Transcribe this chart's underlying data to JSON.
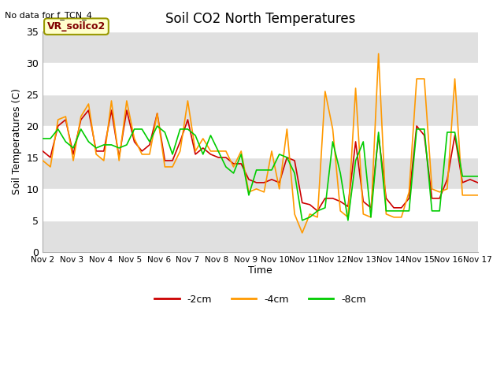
{
  "title": "Soil CO2 North Temperatures",
  "subtitle": "No data for f_TCN_4",
  "ylabel": "Soil Temperatures (C)",
  "xlabel": "Time",
  "ylim": [
    0,
    35
  ],
  "xlim": [
    0,
    15
  ],
  "xtick_labels": [
    "Nov 2",
    "Nov 3",
    "Nov 4",
    "Nov 5",
    "Nov 6",
    "Nov 7",
    "Nov 8",
    "Nov 9",
    "Nov 10",
    "Nov 11",
    "Nov 12",
    "Nov 13",
    "Nov 14",
    "Nov 15",
    "Nov 16",
    "Nov 17"
  ],
  "legend_label": "VR_soilco2",
  "legend_entries": [
    "-2cm",
    "-4cm",
    "-8cm"
  ],
  "legend_colors": [
    "#cc0000",
    "#ff9900",
    "#00cc00"
  ],
  "line_2cm_color": "#cc0000",
  "line_4cm_color": "#ff9900",
  "line_8cm_color": "#00cc00",
  "series_2cm": [
    16.0,
    15.0,
    20.0,
    21.0,
    15.5,
    21.0,
    22.5,
    16.0,
    16.0,
    22.5,
    15.0,
    22.5,
    17.5,
    16.0,
    17.0,
    22.0,
    14.5,
    14.5,
    17.5,
    21.0,
    15.5,
    16.5,
    15.5,
    15.0,
    15.0,
    14.0,
    14.0,
    11.5,
    11.0,
    11.0,
    11.5,
    11.0,
    15.0,
    14.5,
    7.8,
    7.5,
    6.5,
    8.5,
    8.5,
    8.0,
    7.2,
    17.5,
    8.0,
    7.0,
    18.5,
    8.5,
    7.0,
    7.0,
    8.5,
    20.0,
    18.5,
    8.5,
    8.5,
    11.5,
    18.5,
    11.0,
    11.5,
    11.0
  ],
  "series_4cm": [
    14.5,
    13.5,
    21.0,
    21.5,
    14.5,
    21.5,
    23.5,
    15.5,
    14.5,
    24.0,
    14.5,
    24.0,
    18.0,
    15.5,
    15.5,
    22.0,
    13.5,
    13.5,
    16.0,
    24.0,
    16.0,
    18.0,
    16.0,
    16.0,
    16.0,
    13.5,
    16.0,
    9.5,
    10.0,
    9.5,
    16.0,
    10.0,
    19.5,
    6.0,
    3.0,
    6.0,
    5.5,
    25.5,
    19.5,
    6.5,
    5.5,
    26.0,
    6.0,
    5.5,
    31.5,
    6.0,
    5.5,
    5.5,
    9.5,
    27.5,
    27.5,
    10.0,
    9.5,
    10.0,
    27.5,
    9.0,
    9.0,
    9.0
  ],
  "series_8cm": [
    18.0,
    18.0,
    19.5,
    17.5,
    16.5,
    19.5,
    17.5,
    16.5,
    17.0,
    17.0,
    16.5,
    17.0,
    19.5,
    19.5,
    17.5,
    20.0,
    19.0,
    15.5,
    19.5,
    19.5,
    18.5,
    15.5,
    18.5,
    16.0,
    13.5,
    12.5,
    15.5,
    9.0,
    13.0,
    13.0,
    13.0,
    15.5,
    15.0,
    12.5,
    5.0,
    5.5,
    6.5,
    7.0,
    17.5,
    12.5,
    5.0,
    14.5,
    17.5,
    5.5,
    19.0,
    6.5,
    6.5,
    6.5,
    6.5,
    19.5,
    19.5,
    6.5,
    6.5,
    19.0,
    19.0,
    12.0,
    12.0,
    12.0
  ]
}
